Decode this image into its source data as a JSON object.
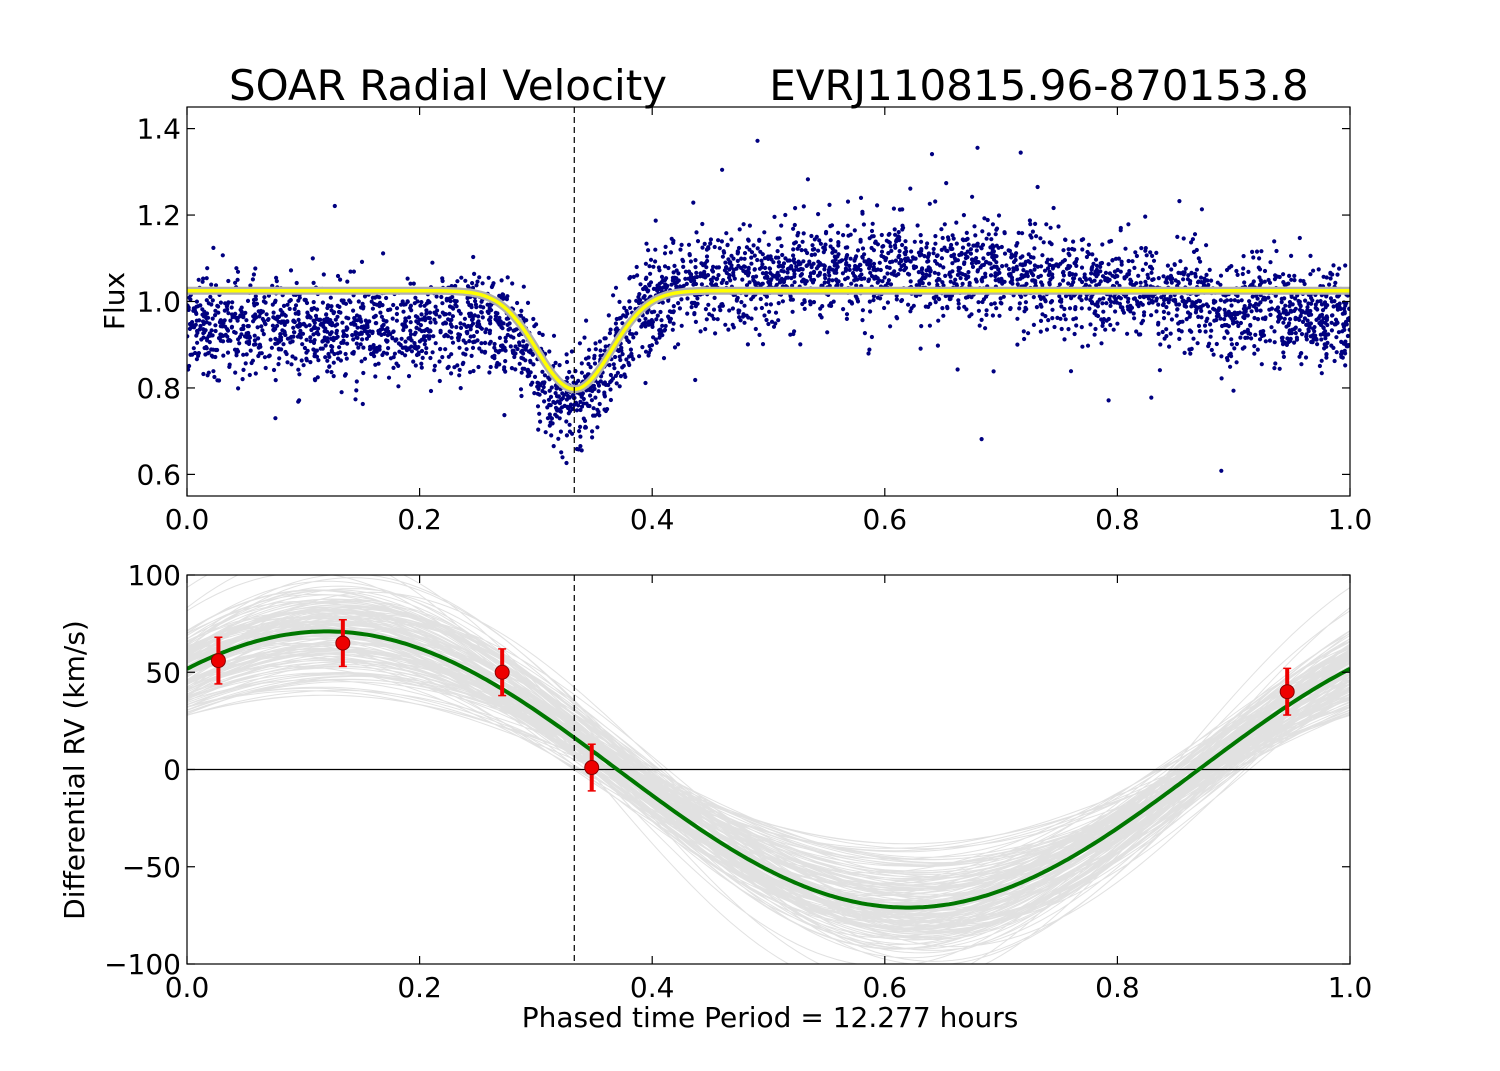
{
  "figure": {
    "title_left": "SOAR Radial Velocity",
    "title_right": "EVRJ110815.96-870153.8",
    "xlabel": "Phased time   Period = 12.277 hours",
    "period_hours": 12.277
  },
  "chart_data": [
    {
      "type": "scatter",
      "name": "flux-panel",
      "ylabel": "Flux",
      "xlim": [
        0.0,
        1.0
      ],
      "ylim": [
        0.55,
        1.45
      ],
      "xticks": [
        "0.0",
        "0.2",
        "0.4",
        "0.6",
        "0.8",
        "1.0"
      ],
      "yticks": [
        "0.6",
        "0.8",
        "1.0",
        "1.2",
        "1.4"
      ],
      "xtick_values": [
        0.0,
        0.2,
        0.4,
        0.6,
        0.8,
        1.0
      ],
      "ytick_values": [
        0.6,
        0.8,
        1.0,
        1.2,
        1.4
      ],
      "points_color": "#000080",
      "model_color": "#ffff00",
      "eclipse_phase": 0.333,
      "series": [
        {
          "name": "photometry",
          "description": "dense scatter of phased flux measurements"
        },
        {
          "name": "eclipse-model",
          "x": [
            0.0,
            0.2,
            0.22,
            0.25,
            0.28,
            0.3,
            0.32,
            0.34,
            0.36,
            0.38,
            0.4,
            0.43,
            0.46,
            0.5,
            0.6,
            0.8,
            1.0
          ],
          "y": [
            1.025,
            1.025,
            1.02,
            0.98,
            0.91,
            0.86,
            0.815,
            0.8,
            0.84,
            0.91,
            0.97,
            1.015,
            1.024,
            1.025,
            1.025,
            1.025,
            1.025
          ]
        }
      ]
    },
    {
      "type": "line",
      "name": "rv-panel",
      "ylabel": "Differential RV (km/s)",
      "xlim": [
        0.0,
        1.0
      ],
      "ylim": [
        -100,
        100
      ],
      "xticks": [
        "0.0",
        "0.2",
        "0.4",
        "0.6",
        "0.8",
        "1.0"
      ],
      "yticks": [
        "−100",
        "−50",
        "0",
        "50",
        "100"
      ],
      "xtick_values": [
        0.0,
        0.2,
        0.4,
        0.6,
        0.8,
        1.0
      ],
      "ytick_values": [
        -100,
        -50,
        0,
        50,
        100
      ],
      "eclipse_phase": 0.333,
      "model": {
        "name": "best-fit",
        "amplitude": 71,
        "phase_of_max": 0.12,
        "color": "#007700"
      },
      "ensemble_color": "#c8c8c8",
      "data_color": "#ee0000",
      "points": [
        {
          "x": 0.027,
          "y": 56,
          "err": 12
        },
        {
          "x": 0.134,
          "y": 65,
          "err": 12
        },
        {
          "x": 0.271,
          "y": 50,
          "err": 12
        },
        {
          "x": 0.348,
          "y": 1,
          "err": 12
        },
        {
          "x": 0.946,
          "y": 40,
          "err": 12
        }
      ]
    }
  ]
}
